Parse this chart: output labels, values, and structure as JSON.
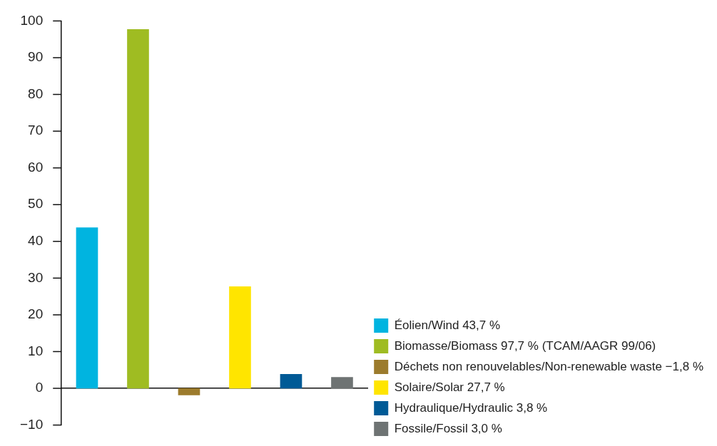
{
  "chart_data": {
    "type": "bar",
    "categories": [
      null,
      null,
      null,
      null,
      null,
      null
    ],
    "series": [
      {
        "name": "Éolien/Wind 43,7 %",
        "color": "#00b4e0",
        "values": [
          43.7,
          null,
          null,
          null,
          null,
          null
        ]
      },
      {
        "name": "Biomasse/Biomass 97,7 % (TCAM/AAGR 99/06)",
        "color": "#9fbc22",
        "values": [
          null,
          97.7,
          null,
          null,
          null,
          null
        ]
      },
      {
        "name": "Déchets non renouvelables/Non-renewable waste −1,8 %",
        "color": "#9c7b2c",
        "values": [
          null,
          null,
          -1.8,
          null,
          null,
          null
        ]
      },
      {
        "name": "Solaire/Solar 27,7 %",
        "color": "#ffe500",
        "values": [
          null,
          null,
          null,
          27.7,
          null,
          null
        ]
      },
      {
        "name": "Hydraulique/Hydraulic 3,8 %",
        "color": "#005a96",
        "values": [
          null,
          null,
          null,
          null,
          3.8,
          null
        ]
      },
      {
        "name": "Fossile/Fossil 3,0 %",
        "color": "#6e7373",
        "values": [
          null,
          null,
          null,
          null,
          null,
          3.0
        ]
      }
    ],
    "ylim": [
      -10,
      100
    ],
    "yticks": [
      {
        "value": -10,
        "label": "−10"
      },
      0,
      10,
      20,
      30,
      40,
      50,
      60,
      70,
      80,
      90,
      100
    ],
    "legend": "bottom right",
    "tick_labels": "y"
  }
}
